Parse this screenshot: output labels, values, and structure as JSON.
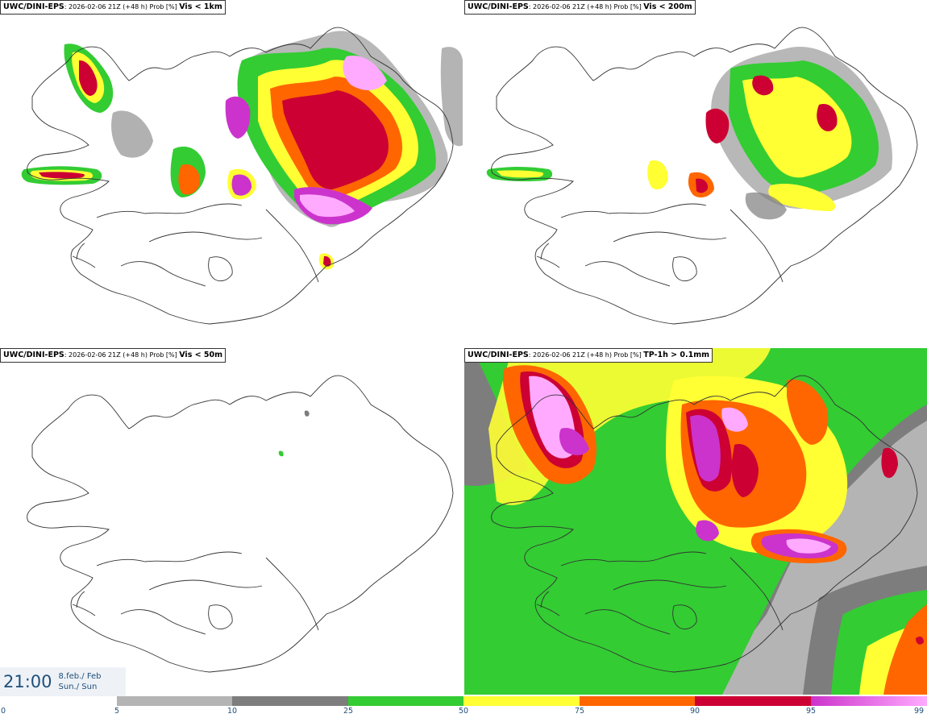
{
  "panels": [
    {
      "model": "UWC/DINI-EPS",
      "run": ": 2026-02-06 21Z (+48 h) Prob [%] ",
      "variable": "Vis < 1km"
    },
    {
      "model": "UWC/DINI-EPS",
      "run": ": 2026-02-06 21Z (+48 h) Prob [%] ",
      "variable": "Vis < 200m"
    },
    {
      "model": "UWC/DINI-EPS",
      "run": ": 2026-02-06 21Z (+48 h) Prob [%] ",
      "variable": "Vis < 50m"
    },
    {
      "model": "UWC/DINI-EPS",
      "run": ": 2026-02-06 21Z (+48 h) Prob [%] ",
      "variable": "TP-1h > 0.1mm"
    }
  ],
  "valid_time": {
    "time": "21:00",
    "date_line1": "8.feb./ Feb",
    "date_line2": "Sun./ Sun"
  },
  "legend": {
    "ticks": [
      "0",
      "5",
      "10",
      "25",
      "50",
      "75",
      "90",
      "95",
      "99"
    ],
    "colors": {
      "light_grey": "#b4b4b4",
      "dark_grey": "#7d7d7d",
      "green": "#33cc33",
      "yellow": "#ffff33",
      "orange": "#ff6600",
      "red": "#cc0033",
      "magenta": "#cc33cc",
      "pink": "#ffaaff"
    }
  }
}
